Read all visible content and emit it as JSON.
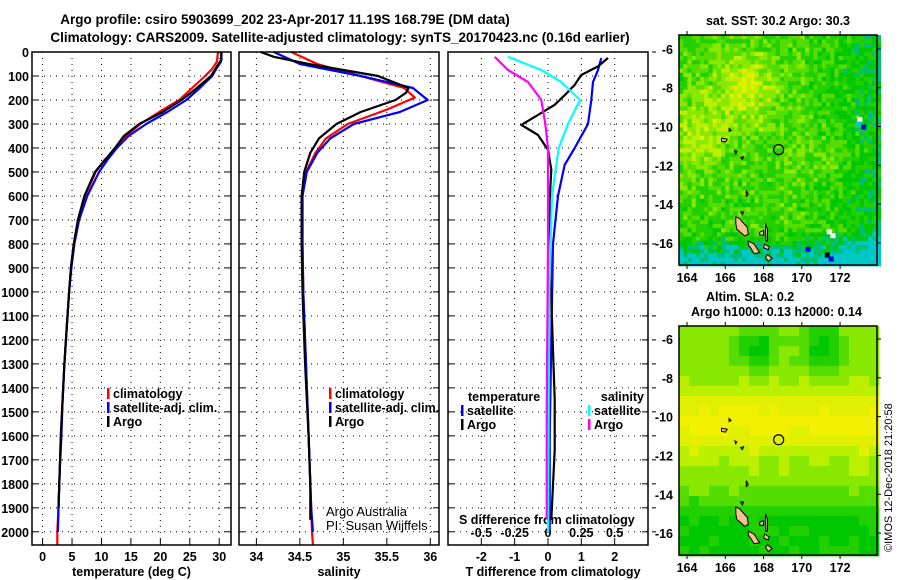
{
  "title": {
    "line1": "Argo profile: csiro 5903699_202 23-Apr-2017 11.19S 168.79E (DM data)",
    "line2": "Climatology: CARS2009. Satellite-adjusted climatology: synTS_20170423.nc (0.16d earlier)"
  },
  "copyright": "©IMOS 12-Dec-2018 21:20:58",
  "credit": {
    "line1": "Argo Australia",
    "line2": "PI: Susan Wijffels"
  },
  "colors": {
    "climatology": "#ff0000",
    "satellite": "#0000ff",
    "argo": "#000000",
    "salinity_satellite": "#00ffff",
    "salinity_argo": "#ff00ff",
    "land": "#f7c08c"
  },
  "depth_ticks": [
    "0",
    "100",
    "200",
    "300",
    "400",
    "500",
    "600",
    "700",
    "800",
    "900",
    "1000",
    "1100",
    "1200",
    "1300",
    "1400",
    "1500",
    "1600",
    "1700",
    "1800",
    "1900",
    "2000"
  ],
  "chart_data": [
    {
      "type": "line",
      "id": "temperature",
      "xlabel": "temperature (deg C)",
      "ylabel": "depth",
      "xlim": [
        -1.8,
        32
      ],
      "ylim": [
        0,
        2055
      ],
      "xticks": [
        "0",
        "5",
        "10",
        "15",
        "20",
        "25",
        "30"
      ],
      "legend": {
        "placement": "lower-middle",
        "entries": [
          "climatology",
          "satellite-adj. clim.",
          "Argo"
        ]
      },
      "series": [
        {
          "name": "climatology",
          "color": "#ff0000",
          "points": [
            [
              29.8,
              0
            ],
            [
              29.6,
              40
            ],
            [
              28.8,
              70
            ],
            [
              27.6,
              100
            ],
            [
              25.4,
              150
            ],
            [
              23.2,
              200
            ],
            [
              19.8,
              250
            ],
            [
              16.6,
              300
            ],
            [
              14.2,
              350
            ],
            [
              12.6,
              400
            ],
            [
              10.5,
              450
            ],
            [
              9.0,
              500
            ],
            [
              7.2,
              600
            ],
            [
              6.0,
              700
            ],
            [
              5.3,
              800
            ],
            [
              4.8,
              900
            ],
            [
              4.5,
              1000
            ],
            [
              4.1,
              1150
            ],
            [
              3.7,
              1300
            ],
            [
              3.4,
              1450
            ],
            [
              3.1,
              1600
            ],
            [
              2.9,
              1750
            ],
            [
              2.7,
              1900
            ],
            [
              2.5,
              2000
            ],
            [
              2.5,
              2055
            ]
          ]
        },
        {
          "name": "satellite-adj. clim.",
          "color": "#0000ff",
          "points": [
            [
              30.4,
              0
            ],
            [
              30.3,
              40
            ],
            [
              29.5,
              70
            ],
            [
              28.8,
              100
            ],
            [
              26.7,
              150
            ],
            [
              24.4,
              200
            ],
            [
              21.2,
              250
            ],
            [
              17.6,
              300
            ],
            [
              14.6,
              350
            ],
            [
              12.6,
              400
            ],
            [
              11.0,
              450
            ],
            [
              9.6,
              500
            ],
            [
              7.6,
              600
            ],
            [
              6.2,
              700
            ],
            [
              5.4,
              800
            ],
            [
              4.9,
              900
            ],
            [
              4.5,
              1000
            ],
            [
              4.1,
              1150
            ],
            [
              3.7,
              1300
            ],
            [
              3.4,
              1450
            ],
            [
              3.2,
              1600
            ],
            [
              2.9,
              1750
            ],
            [
              2.7,
              1900
            ],
            [
              2.6,
              2000
            ]
          ]
        },
        {
          "name": "Argo",
          "color": "#000000",
          "points": [
            [
              30.3,
              0
            ],
            [
              30.4,
              30
            ],
            [
              29.6,
              60
            ],
            [
              28.6,
              100
            ],
            [
              26.2,
              150
            ],
            [
              23.6,
              200
            ],
            [
              20.4,
              250
            ],
            [
              16.4,
              300
            ],
            [
              13.8,
              350
            ],
            [
              12.3,
              400
            ],
            [
              10.6,
              450
            ],
            [
              8.9,
              500
            ],
            [
              7.1,
              600
            ],
            [
              6.0,
              700
            ],
            [
              5.3,
              800
            ],
            [
              4.8,
              900
            ],
            [
              4.5,
              1000
            ],
            [
              4.1,
              1150
            ],
            [
              3.7,
              1300
            ],
            [
              3.4,
              1450
            ],
            [
              3.1,
              1600
            ],
            [
              2.9,
              1750
            ],
            [
              2.7,
              1900
            ]
          ]
        }
      ]
    },
    {
      "type": "line",
      "id": "salinity",
      "xlabel": "salinity",
      "xlim": [
        33.8,
        36.1
      ],
      "ylim": [
        0,
        2055
      ],
      "xticks": [
        "34",
        "34.5",
        "35",
        "35.5",
        "36"
      ],
      "legend": {
        "placement": "lower-middle",
        "entries": [
          "climatology",
          "satellite-adj. clim.",
          "Argo"
        ]
      },
      "series": [
        {
          "name": "climatology",
          "color": "#ff0000",
          "points": [
            [
              34.4,
              0
            ],
            [
              34.7,
              50
            ],
            [
              35.2,
              100
            ],
            [
              35.7,
              150
            ],
            [
              35.82,
              190
            ],
            [
              35.5,
              240
            ],
            [
              35.05,
              300
            ],
            [
              34.8,
              360
            ],
            [
              34.68,
              420
            ],
            [
              34.57,
              500
            ],
            [
              34.53,
              600
            ],
            [
              34.53,
              800
            ],
            [
              34.54,
              1000
            ],
            [
              34.57,
              1300
            ],
            [
              34.6,
              1600
            ],
            [
              34.63,
              1900
            ],
            [
              34.64,
              2000
            ],
            [
              34.65,
              2055
            ]
          ]
        },
        {
          "name": "satellite-adj. clim.",
          "color": "#0000ff",
          "points": [
            [
              34.2,
              0
            ],
            [
              34.5,
              50
            ],
            [
              35.2,
              100
            ],
            [
              35.8,
              150
            ],
            [
              35.97,
              200
            ],
            [
              35.65,
              250
            ],
            [
              35.12,
              300
            ],
            [
              34.85,
              360
            ],
            [
              34.7,
              420
            ],
            [
              34.58,
              500
            ],
            [
              34.53,
              600
            ],
            [
              34.53,
              800
            ],
            [
              34.54,
              1000
            ],
            [
              34.57,
              1300
            ],
            [
              34.6,
              1600
            ],
            [
              34.63,
              1900
            ],
            [
              34.65,
              2000
            ]
          ]
        },
        {
          "name": "Argo",
          "color": "#000000",
          "points": [
            [
              34.05,
              0
            ],
            [
              34.2,
              20
            ],
            [
              34.6,
              50
            ],
            [
              35.4,
              100
            ],
            [
              35.75,
              150
            ],
            [
              35.72,
              170
            ],
            [
              35.6,
              200
            ],
            [
              35.2,
              250
            ],
            [
              34.92,
              300
            ],
            [
              34.72,
              360
            ],
            [
              34.62,
              420
            ],
            [
              34.55,
              500
            ],
            [
              34.52,
              600
            ],
            [
              34.52,
              800
            ],
            [
              34.53,
              1000
            ],
            [
              34.56,
              1300
            ],
            [
              34.6,
              1600
            ],
            [
              34.62,
              1800
            ],
            [
              34.62,
              1950
            ]
          ]
        }
      ]
    },
    {
      "type": "line",
      "id": "difference",
      "xlabel": "T difference from climatology",
      "secondary_xlabel": "S difference from climatology",
      "xlim": [
        -3,
        3
      ],
      "secondary_xlim": [
        -0.75,
        0.75
      ],
      "ylim": [
        0,
        2055
      ],
      "xticks": [
        "-2",
        "-1",
        "0",
        "1",
        "2"
      ],
      "secondary_xticks": [
        "-0.5",
        "-0.25",
        "0",
        "0.25",
        "0.5"
      ],
      "legend": {
        "placement": "lower",
        "temperature_header": "temperature",
        "salinity_header": "salinity",
        "entries": [
          "satellite",
          "Argo",
          "satellite",
          "Argo"
        ]
      },
      "series": [
        {
          "name": "temperature satellite",
          "axis": "T",
          "color": "#0000ff",
          "points": [
            [
              1.6,
              25
            ],
            [
              1.5,
              75
            ],
            [
              1.35,
              125
            ],
            [
              1.3,
              200
            ],
            [
              1.2,
              300
            ],
            [
              0.8,
              400
            ],
            [
              0.5,
              470
            ],
            [
              0.3,
              600
            ],
            [
              0.15,
              800
            ],
            [
              0.1,
              1200
            ],
            [
              0.05,
              1600
            ],
            [
              0.05,
              2000
            ]
          ]
        },
        {
          "name": "temperature Argo",
          "axis": "T",
          "color": "#000000",
          "points": [
            [
              1.8,
              25
            ],
            [
              1.5,
              60
            ],
            [
              1.0,
              96
            ],
            [
              0.8,
              137
            ],
            [
              0.5,
              180
            ],
            [
              0.2,
              220
            ],
            [
              -0.3,
              262
            ],
            [
              -0.8,
              304
            ],
            [
              -0.3,
              346
            ],
            [
              0.0,
              408
            ],
            [
              0.1,
              490
            ],
            [
              0.05,
              616
            ],
            [
              0.1,
              1033
            ],
            [
              0.2,
              1450
            ],
            [
              0.2,
              1658
            ],
            [
              0.1,
              1950
            ]
          ]
        },
        {
          "name": "salinity satellite",
          "axis": "S",
          "color": "#00ffff",
          "points": [
            [
              -0.3,
              20
            ],
            [
              -0.05,
              75
            ],
            [
              0.1,
              125
            ],
            [
              0.24,
              200
            ],
            [
              0.15,
              300
            ],
            [
              0.08,
              400
            ],
            [
              0.03,
              600
            ],
            [
              0.01,
              1000
            ],
            [
              0.0,
              2000
            ]
          ]
        },
        {
          "name": "salinity Argo",
          "axis": "S",
          "color": "#ff00ff",
          "points": [
            [
              -0.4,
              20
            ],
            [
              -0.3,
              75
            ],
            [
              -0.15,
              125
            ],
            [
              -0.05,
              200
            ],
            [
              -0.02,
              300
            ],
            [
              0.0,
              400
            ],
            [
              0.0,
              800
            ],
            [
              -0.01,
              1500
            ],
            [
              -0.01,
              1950
            ]
          ]
        }
      ]
    },
    {
      "type": "heatmap",
      "id": "sst-map",
      "title": "sat. SST: 30.2 Argo: 30.3",
      "xlim": [
        163.58,
        173.93
      ],
      "ylim": [
        -17.14,
        -5.28
      ],
      "xticks": [
        "164",
        "166",
        "168",
        "170",
        "172"
      ],
      "yticks": [
        "-6",
        "-8",
        "-10",
        "-12",
        "-14",
        "-16"
      ],
      "marker": {
        "lon": 168.79,
        "lat": -11.19
      }
    },
    {
      "type": "heatmap",
      "id": "sla-map",
      "title_line1": "Altim. SLA: 0.2",
      "title_line2": "Argo h1000: 0.13 h2000: 0.14",
      "xlim": [
        163.58,
        173.93
      ],
      "ylim": [
        -17.13,
        -5.33
      ],
      "xticks": [
        "164",
        "166",
        "168",
        "170",
        "172"
      ],
      "yticks": [
        "-6",
        "-8",
        "-10",
        "-12",
        "-14",
        "-16"
      ],
      "marker": {
        "lon": 168.79,
        "lat": -11.19
      }
    }
  ]
}
